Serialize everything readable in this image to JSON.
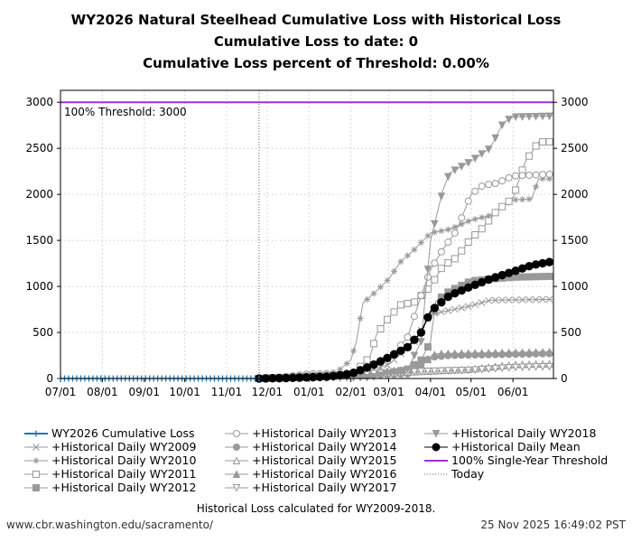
{
  "chart_data": {
    "type": "line",
    "title": [
      "WY2026 Natural Steelhead Cumulative Loss with Historical Loss",
      "Cumulative Loss to date: 0",
      "Cumulative Loss percent of Threshold: 0.00%"
    ],
    "xlabel": "",
    "ylabel": "",
    "x_ticks": [
      "07/01",
      "08/01",
      "09/01",
      "10/01",
      "11/01",
      "12/01",
      "01/01",
      "02/01",
      "03/01",
      "04/01",
      "05/01",
      "06/01"
    ],
    "y_ticks": [
      0,
      500,
      1000,
      1500,
      2000,
      2500,
      3000
    ],
    "ylim": [
      0,
      3130
    ],
    "xlim": [
      "07/01",
      "06/30"
    ],
    "grid": true,
    "legend_position": "bottom",
    "threshold": {
      "value": 3000,
      "label": "100% Threshold: 3000",
      "color": "#9b30d9"
    },
    "today": "11/25",
    "series": [
      {
        "name": "WY2026 Cumulative Loss",
        "color": "#1f77b4",
        "marker": "plus",
        "points": [
          [
            "07/01",
            0
          ],
          [
            "11/25",
            0
          ]
        ]
      },
      {
        "name": "+Historical Daily WY2009",
        "color": "#999999",
        "marker": "x",
        "points": [
          [
            "11/25",
            0
          ],
          [
            "01/01",
            10
          ],
          [
            "02/01",
            30
          ],
          [
            "03/01",
            150
          ],
          [
            "03/20",
            400
          ],
          [
            "04/01",
            700
          ],
          [
            "04/15",
            740
          ],
          [
            "05/01",
            790
          ],
          [
            "05/15",
            850
          ],
          [
            "06/30",
            860
          ]
        ]
      },
      {
        "name": "+Historical Daily WY2010",
        "color": "#999999",
        "marker": "star",
        "points": [
          [
            "11/25",
            0
          ],
          [
            "01/20",
            50
          ],
          [
            "02/01",
            200
          ],
          [
            "02/05",
            400
          ],
          [
            "02/10",
            820
          ],
          [
            "02/20",
            950
          ],
          [
            "03/01",
            1080
          ],
          [
            "03/10",
            1270
          ],
          [
            "03/20",
            1400
          ],
          [
            "04/01",
            1580
          ],
          [
            "04/15",
            1620
          ],
          [
            "05/01",
            1720
          ],
          [
            "05/15",
            1770
          ],
          [
            "06/01",
            1940
          ],
          [
            "06/15",
            1950
          ],
          [
            "06/20",
            2170
          ],
          [
            "06/30",
            2170
          ]
        ]
      },
      {
        "name": "+Historical Daily WY2011",
        "color": "#999999",
        "marker": "square-open",
        "points": [
          [
            "11/25",
            0
          ],
          [
            "02/01",
            30
          ],
          [
            "02/15",
            230
          ],
          [
            "02/20",
            480
          ],
          [
            "03/01",
            660
          ],
          [
            "03/10",
            800
          ],
          [
            "03/20",
            830
          ],
          [
            "04/01",
            1000
          ],
          [
            "04/10",
            1220
          ],
          [
            "04/20",
            1310
          ],
          [
            "05/01",
            1520
          ],
          [
            "05/10",
            1640
          ],
          [
            "05/20",
            1820
          ],
          [
            "06/01",
            1960
          ],
          [
            "06/10",
            2350
          ],
          [
            "06/20",
            2570
          ],
          [
            "06/30",
            2570
          ]
        ]
      },
      {
        "name": "+Historical Daily WY2012",
        "color": "#999999",
        "marker": "square-filled",
        "points": [
          [
            "11/25",
            0
          ],
          [
            "02/01",
            40
          ],
          [
            "03/01",
            60
          ],
          [
            "03/15",
            100
          ],
          [
            "03/25",
            200
          ],
          [
            "04/01",
            400
          ],
          [
            "04/05",
            840
          ],
          [
            "04/15",
            950
          ],
          [
            "05/01",
            1060
          ],
          [
            "05/15",
            1080
          ],
          [
            "06/01",
            1100
          ],
          [
            "06/30",
            1110
          ]
        ]
      },
      {
        "name": "+Historical Daily WY2013",
        "color": "#999999",
        "marker": "circle-open",
        "points": [
          [
            "11/25",
            0
          ],
          [
            "12/15",
            20
          ],
          [
            "01/01",
            50
          ],
          [
            "02/01",
            60
          ],
          [
            "03/01",
            200
          ],
          [
            "03/15",
            450
          ],
          [
            "03/25",
            900
          ],
          [
            "04/01",
            1180
          ],
          [
            "04/10",
            1400
          ],
          [
            "04/20",
            1600
          ],
          [
            "05/01",
            2000
          ],
          [
            "05/10",
            2100
          ],
          [
            "05/20",
            2120
          ],
          [
            "06/01",
            2200
          ],
          [
            "06/30",
            2220
          ]
        ]
      },
      {
        "name": "+Historical Daily WY2014",
        "color": "#999999",
        "marker": "circle-filled",
        "points": [
          [
            "11/25",
            0
          ],
          [
            "03/15",
            50
          ],
          [
            "04/01",
            230
          ],
          [
            "04/15",
            250
          ],
          [
            "06/30",
            270
          ]
        ]
      },
      {
        "name": "+Historical Daily WY2015",
        "color": "#999999",
        "marker": "triangle-up-open",
        "points": [
          [
            "11/25",
            0
          ],
          [
            "04/01",
            80
          ],
          [
            "05/01",
            100
          ],
          [
            "06/01",
            150
          ],
          [
            "06/30",
            160
          ]
        ]
      },
      {
        "name": "+Historical Daily WY2016",
        "color": "#999999",
        "marker": "triangle-up-filled",
        "points": [
          [
            "11/25",
            0
          ],
          [
            "03/20",
            100
          ],
          [
            "04/05",
            270
          ],
          [
            "06/30",
            290
          ]
        ]
      },
      {
        "name": "+Historical Daily WY2017",
        "color": "#999999",
        "marker": "triangle-down-open",
        "points": [
          [
            "11/25",
            0
          ],
          [
            "04/01",
            80
          ],
          [
            "05/01",
            90
          ],
          [
            "06/01",
            120
          ],
          [
            "06/30",
            130
          ]
        ]
      },
      {
        "name": "+Historical Daily WY2018",
        "color": "#999999",
        "marker": "triangle-down-filled",
        "points": [
          [
            "11/25",
            0
          ],
          [
            "02/15",
            10
          ],
          [
            "03/15",
            100
          ],
          [
            "03/25",
            400
          ],
          [
            "04/01",
            1500
          ],
          [
            "04/10",
            2040
          ],
          [
            "04/15",
            2230
          ],
          [
            "05/01",
            2360
          ],
          [
            "05/15",
            2500
          ],
          [
            "05/25",
            2780
          ],
          [
            "06/01",
            2840
          ],
          [
            "06/30",
            2850
          ]
        ]
      },
      {
        "name": "+Historical Daily Mean",
        "color": "#000000",
        "marker": "circle-filled",
        "points": [
          [
            "11/25",
            0
          ],
          [
            "12/15",
            5
          ],
          [
            "01/15",
            20
          ],
          [
            "02/01",
            50
          ],
          [
            "02/15",
            130
          ],
          [
            "03/01",
            230
          ],
          [
            "03/15",
            340
          ],
          [
            "03/25",
            500
          ],
          [
            "04/01",
            730
          ],
          [
            "04/15",
            900
          ],
          [
            "05/01",
            1000
          ],
          [
            "05/15",
            1080
          ],
          [
            "06/01",
            1160
          ],
          [
            "06/15",
            1230
          ],
          [
            "06/30",
            1270
          ]
        ]
      }
    ],
    "legend_extra": [
      "100% Single-Year Threshold",
      "Today"
    ]
  },
  "footer": {
    "note": "Historical Loss calculated for WY2009-2018.",
    "url": "www.cbr.washington.edu/sacramento/",
    "timestamp": "25 Nov 2025 16:49:02 PST"
  }
}
